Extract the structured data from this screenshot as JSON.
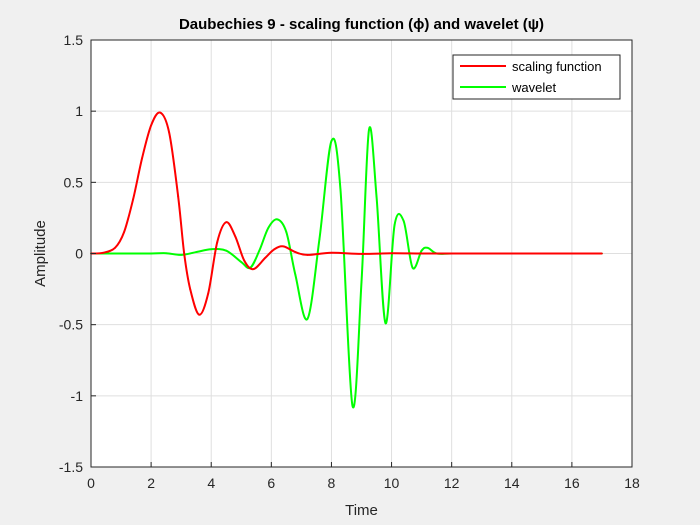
{
  "chart_data": {
    "type": "line",
    "title": "Daubechies 9 - scaling function (ϕ) and wavelet (ψ)",
    "xlabel": "Time",
    "ylabel": "Amplitude",
    "xlim": [
      0,
      18
    ],
    "ylim": [
      -1.5,
      1.5
    ],
    "xticks": [
      "0",
      "2",
      "4",
      "6",
      "8",
      "10",
      "12",
      "14",
      "16",
      "18"
    ],
    "yticks": [
      "-1.5",
      "-1",
      "-0.5",
      "0",
      "0.5",
      "1",
      "1.5"
    ],
    "grid": true,
    "legend_position": "top-right",
    "series": [
      {
        "name": "scaling function",
        "color": "#ff0000",
        "x": [
          0,
          0.4,
          0.8,
          1.1,
          1.4,
          1.7,
          2.0,
          2.3,
          2.6,
          2.9,
          3.1,
          3.3,
          3.6,
          3.9,
          4.2,
          4.5,
          4.8,
          5.1,
          5.4,
          5.8,
          6.1,
          6.4,
          6.8,
          7.2,
          8.0,
          9.0,
          10.0,
          11.0,
          12.0,
          13.0,
          14.0,
          15.0,
          16.0,
          17.0
        ],
        "y": [
          0,
          0.005,
          0.04,
          0.15,
          0.38,
          0.67,
          0.9,
          0.99,
          0.85,
          0.4,
          0.0,
          -0.25,
          -0.43,
          -0.28,
          0.08,
          0.22,
          0.12,
          -0.05,
          -0.11,
          -0.03,
          0.03,
          0.05,
          0.01,
          -0.01,
          0.005,
          -0.003,
          0.002,
          0.0,
          0.0,
          0.0,
          0.0,
          0.0,
          0.0,
          0.0
        ]
      },
      {
        "name": "wavelet",
        "color": "#00ff00",
        "x": [
          0,
          1.0,
          2.0,
          2.5,
          3.0,
          3.5,
          4.0,
          4.5,
          5.0,
          5.3,
          5.6,
          5.9,
          6.2,
          6.5,
          6.8,
          7.2,
          7.6,
          8.0,
          8.3,
          8.7,
          9.0,
          9.25,
          9.5,
          9.8,
          10.1,
          10.4,
          10.7,
          11.0,
          11.2,
          11.5,
          12.0,
          13.0,
          14.0,
          15.0,
          16.0,
          17.0
        ],
        "y": [
          0,
          0.0,
          0.0,
          0.002,
          -0.01,
          0.01,
          0.03,
          0.02,
          -0.06,
          -0.1,
          0.02,
          0.18,
          0.24,
          0.15,
          -0.15,
          -0.46,
          0.1,
          0.79,
          0.45,
          -1.07,
          -0.2,
          0.87,
          0.4,
          -0.49,
          0.2,
          0.23,
          -0.1,
          0.02,
          0.04,
          0.0,
          0.0,
          0.0,
          0.0,
          0.0,
          0.0,
          0.0
        ]
      }
    ]
  }
}
